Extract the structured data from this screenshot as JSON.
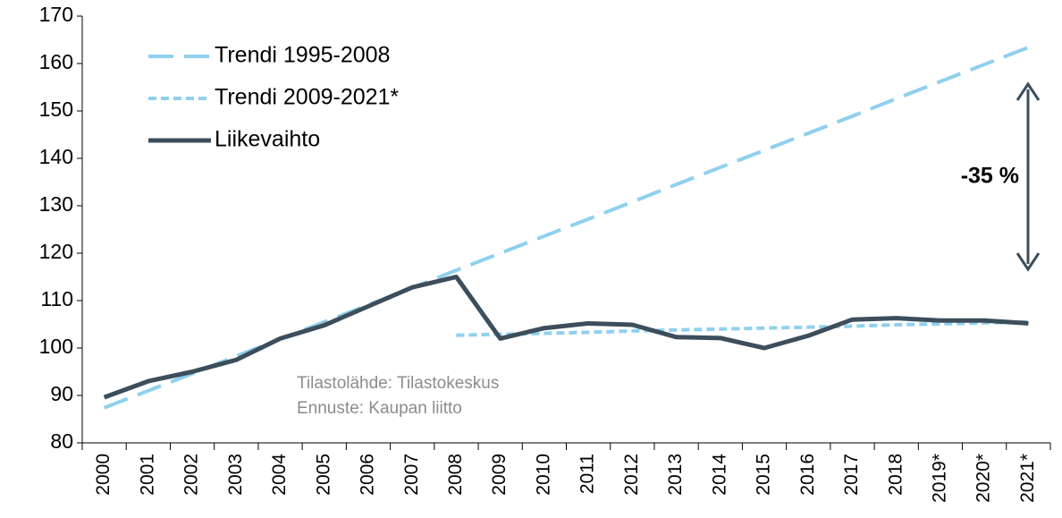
{
  "chart_data": {
    "type": "line",
    "categories": [
      "2000",
      "2001",
      "2002",
      "2003",
      "2004",
      "2005",
      "2006",
      "2007",
      "2008",
      "2009",
      "2010",
      "2011",
      "2012",
      "2013",
      "2014",
      "2015",
      "2016",
      "2017",
      "2018",
      "2019*",
      "2020*",
      "2021*"
    ],
    "series": [
      {
        "name": "Trendi 1995-2008",
        "color": "#8fd0ee",
        "dash": "long",
        "values": [
          87.4,
          91.0,
          94.6,
          98.3,
          101.9,
          105.5,
          109.1,
          112.7,
          116.4,
          120.0,
          123.6,
          127.2,
          130.8,
          134.5,
          138.1,
          141.7,
          145.3,
          148.9,
          152.6,
          156.2,
          159.8,
          163.4
        ]
      },
      {
        "name": "Trendi 2009-2021*",
        "color": "#8fd0ee",
        "dash": "short",
        "values": [
          null,
          null,
          null,
          null,
          null,
          null,
          null,
          null,
          102.7,
          102.9,
          103.1,
          103.3,
          103.6,
          103.8,
          104.0,
          104.2,
          104.4,
          104.6,
          104.9,
          105.1,
          105.3,
          105.5
        ]
      },
      {
        "name": "Liikevaihto",
        "color": "#3c4e5c",
        "dash": "solid",
        "values": [
          89.6,
          93.0,
          95.0,
          97.5,
          102.0,
          104.8,
          108.8,
          112.8,
          115.0,
          102.0,
          104.2,
          105.2,
          104.9,
          102.3,
          102.1,
          100.0,
          102.6,
          106.0,
          106.3,
          105.8,
          105.8,
          105.2
        ]
      }
    ],
    "ylim": [
      80,
      170
    ],
    "yticks": [
      80,
      90,
      100,
      110,
      120,
      130,
      140,
      150,
      160,
      170
    ],
    "annotations": [
      "-35 %",
      "Tilastolähde: Tilastokeskus",
      "Ennuste: Kaupan liitto"
    ]
  }
}
